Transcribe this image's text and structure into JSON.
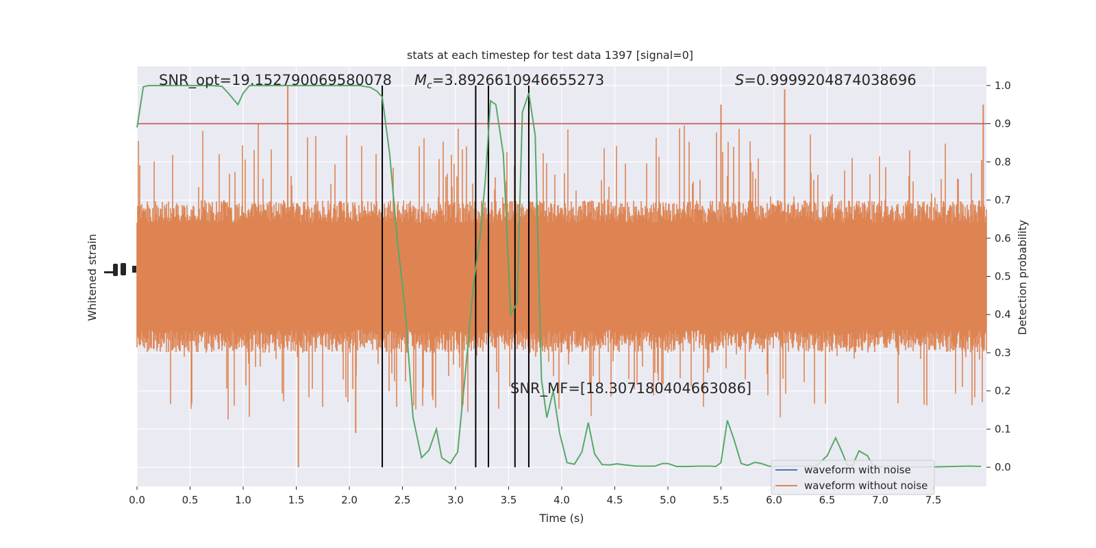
{
  "chart_data": {
    "type": "line",
    "title": "stats at each timestep for test data 1397 [signal=0]",
    "xlabel": "Time (s)",
    "ylabel_left": "Whitened strain",
    "ylabel_right": "Detection probability",
    "xlim": [
      0.0,
      8.0
    ],
    "ylim_right": [
      -0.05,
      1.05
    ],
    "x_ticks": [
      "0.0",
      "0.5",
      "1.0",
      "1.5",
      "2.0",
      "2.5",
      "3.0",
      "3.5",
      "4.0",
      "4.5",
      "5.0",
      "5.5",
      "6.0",
      "6.5",
      "7.0",
      "7.5"
    ],
    "x_tick_values": [
      0.0,
      0.5,
      1.0,
      1.5,
      2.0,
      2.5,
      3.0,
      3.5,
      4.0,
      4.5,
      5.0,
      5.5,
      6.0,
      6.5,
      7.0,
      7.5
    ],
    "y_ticks_right": [
      "0.0",
      "0.1",
      "0.2",
      "0.3",
      "0.4",
      "0.5",
      "0.6",
      "0.7",
      "0.8",
      "0.9",
      "1.0"
    ],
    "y_tick_values_right": [
      0.0,
      0.1,
      0.2,
      0.3,
      0.4,
      0.5,
      0.6,
      0.7,
      0.8,
      0.9,
      1.0
    ],
    "grid": true,
    "legend_position": "lower-right",
    "legend": [
      {
        "label": "waveform with noise",
        "color": "#4c72b0"
      },
      {
        "label": "waveform without noise",
        "color": "#dd8452"
      }
    ],
    "annotations": {
      "snr_opt": "SNR_opt=19.152790069580078",
      "mc_symbol": "M",
      "mc_subscript": "c",
      "mc_value": "=3.8926610946655273",
      "s_symbol": "S",
      "s_value": "=0.9999204874038696",
      "snr_mf": "SNR_MF=[18.307180404663086]"
    },
    "threshold": {
      "y": 0.9,
      "color": "#c44e52"
    },
    "vertical_lines_x": [
      2.31,
      3.19,
      3.31,
      3.56,
      3.69
    ],
    "series": [
      {
        "name": "detection probability",
        "color": "#55a868",
        "x": [
          0.0,
          0.06,
          0.11,
          0.2,
          0.3,
          0.4,
          0.5,
          0.6,
          0.7,
          0.8,
          0.86,
          0.95,
          1.0,
          1.06,
          1.13,
          1.2,
          1.3,
          1.4,
          1.5,
          1.6,
          1.7,
          1.8,
          1.9,
          2.0,
          2.1,
          2.2,
          2.26,
          2.31,
          2.38,
          2.45,
          2.53,
          2.6,
          2.68,
          2.75,
          2.82,
          2.87,
          2.95,
          3.02,
          3.09,
          3.17,
          3.23,
          3.28,
          3.33,
          3.38,
          3.45,
          3.52,
          3.58,
          3.63,
          3.69,
          3.75,
          3.81,
          3.86,
          3.92,
          3.98,
          4.05,
          4.12,
          4.19,
          4.25,
          4.31,
          4.38,
          4.45,
          4.52,
          4.6,
          4.7,
          4.8,
          4.88,
          4.95,
          5.0,
          5.08,
          5.2,
          5.3,
          5.4,
          5.45,
          5.5,
          5.56,
          5.62,
          5.69,
          5.75,
          5.82,
          5.88,
          5.95,
          6.02,
          6.1,
          6.2,
          6.3,
          6.4,
          6.5,
          6.58,
          6.64,
          6.69,
          6.74,
          6.8,
          6.88,
          6.93,
          6.98,
          7.05,
          7.15,
          7.3,
          7.5,
          7.7,
          7.85,
          7.95
        ],
        "y": [
          0.89,
          0.997,
          1.0,
          1.0,
          1.0,
          1.0,
          1.0,
          1.0,
          1.0,
          0.998,
          0.98,
          0.95,
          0.98,
          1.0,
          1.0,
          1.0,
          1.0,
          1.0,
          1.0,
          1.0,
          1.0,
          1.0,
          1.0,
          1.0,
          1.0,
          0.995,
          0.985,
          0.97,
          0.82,
          0.6,
          0.4,
          0.13,
          0.025,
          0.045,
          0.1,
          0.025,
          0.01,
          0.04,
          0.24,
          0.48,
          0.6,
          0.75,
          0.96,
          0.95,
          0.82,
          0.4,
          0.43,
          0.93,
          0.98,
          0.87,
          0.23,
          0.13,
          0.2,
          0.09,
          0.012,
          0.008,
          0.04,
          0.117,
          0.035,
          0.007,
          0.006,
          0.009,
          0.006,
          0.003,
          0.003,
          0.003,
          0.01,
          0.01,
          0.002,
          0.002,
          0.003,
          0.003,
          0.002,
          0.012,
          0.123,
          0.075,
          0.01,
          0.005,
          0.013,
          0.01,
          0.003,
          0.002,
          0.003,
          0.003,
          0.003,
          0.004,
          0.03,
          0.077,
          0.04,
          0.005,
          0.005,
          0.043,
          0.03,
          0.005,
          0.002,
          0.001,
          0.001,
          0.001,
          0.001,
          0.002,
          0.003,
          0.002
        ]
      }
    ],
    "noise_strain": {
      "name": "waveform without noise",
      "color": "#dd8452",
      "center": 0.5,
      "typical_range": [
        0.3,
        0.7
      ],
      "max_range": [
        0.0,
        1.0
      ],
      "peaks_x": [
        1.52,
        2.06,
        1.42,
        6.1,
        7.97,
        5.5
      ],
      "peaks_y": [
        0.0,
        0.09,
        1.0,
        0.99,
        0.95,
        0.95
      ]
    }
  }
}
